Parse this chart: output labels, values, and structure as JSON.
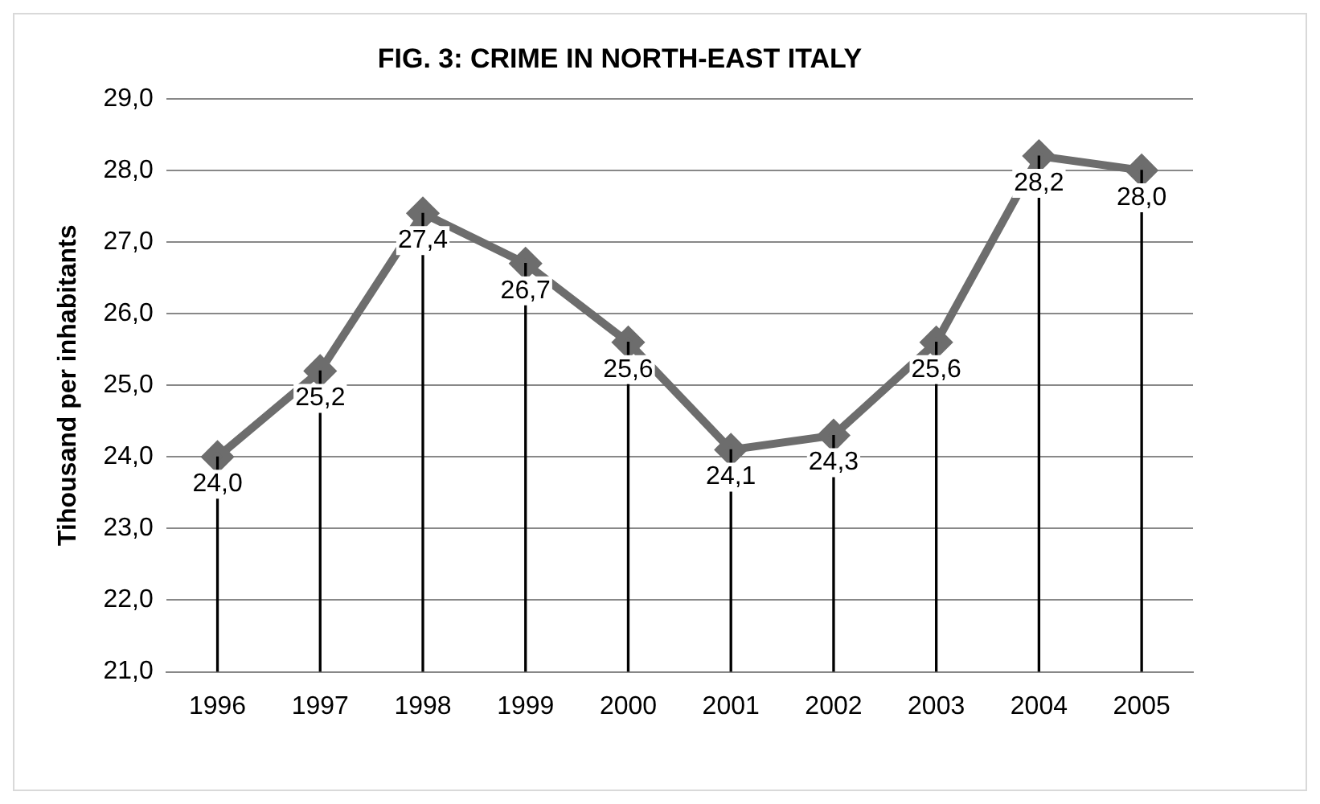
{
  "chart_data": {
    "type": "line",
    "title": "FIG. 3: CRIME IN NORTH-EAST ITALY",
    "ylabel": "Tihousand per inhabitants",
    "categories": [
      "1996",
      "1997",
      "1998",
      "1999",
      "2000",
      "2001",
      "2002",
      "2003",
      "2004",
      "2005"
    ],
    "series": [
      {
        "type": "bar",
        "color": "#000000",
        "values": [
          24.0,
          25.2,
          27.4,
          26.7,
          25.6,
          24.1,
          24.3,
          25.6,
          28.2,
          28.0
        ]
      },
      {
        "color": "#6d6d6d",
        "values": [
          24.0,
          25.2,
          27.4,
          26.7,
          25.6,
          24.1,
          24.3,
          25.6,
          28.2,
          28.0
        ],
        "value_labels": [
          "24,0",
          "25,2",
          "27,4",
          "26,7",
          "25,6",
          "24,1",
          "24,3",
          "25,6",
          "28,2",
          "28,0"
        ]
      }
    ],
    "ylim": [
      21,
      29
    ],
    "yticks": [
      {
        "value": 21,
        "label": "21,0"
      },
      {
        "value": 22,
        "label": "22,0"
      },
      {
        "value": 23,
        "label": "23,0"
      },
      {
        "value": 24,
        "label": "24,0"
      },
      {
        "value": 25,
        "label": "25,0"
      },
      {
        "value": 26,
        "label": "26,0"
      },
      {
        "value": 27,
        "label": "27,0"
      },
      {
        "value": 28,
        "label": "28,0"
      },
      {
        "value": 29,
        "label": "29,0"
      }
    ],
    "grid": "y",
    "legend": false,
    "marker": "diamond",
    "line_style": "solid"
  }
}
